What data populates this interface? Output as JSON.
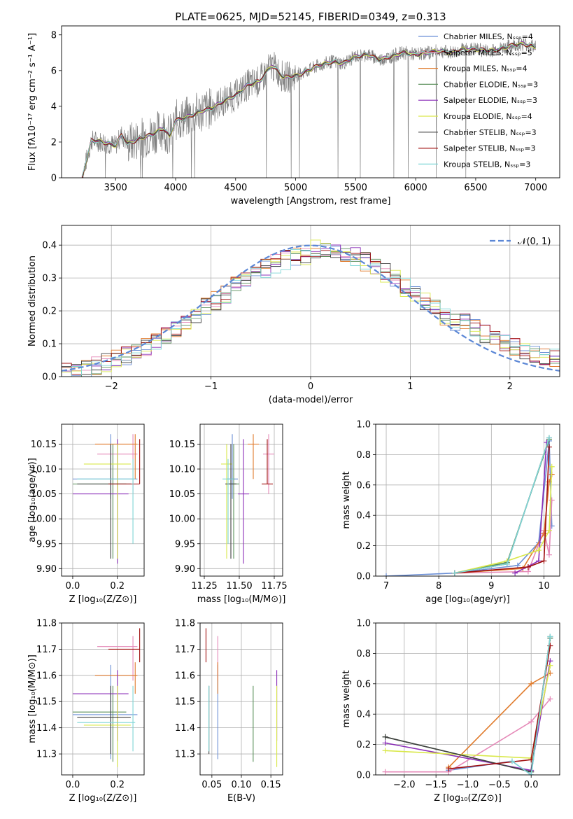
{
  "figure": {
    "title": "PLATE=0625, MJD=52145, FIBERID=0349, z=0.313"
  },
  "colors": {
    "Chabrier MILES": "#6b8fd6",
    "Salpeter MILES": "#e589b8",
    "Kroupa MILES": "#e07b2c",
    "Chabrier ELODIE": "#5a8f5a",
    "Salpeter ELODIE": "#8b2fb8",
    "Kroupa ELODIE": "#d9e84a",
    "Chabrier STELIB": "#404040",
    "Salpeter STELIB": "#a01010",
    "Kroupa STELIB": "#7fd6d6"
  },
  "chart_data": [
    {
      "id": "spectrum",
      "type": "line",
      "title": "PLATE=0625, MJD=52145, FIBERID=0349, z=0.313",
      "xlabel": "wavelength [Angstrom, rest frame]",
      "ylabel": "Flux [fλ10⁻¹⁷ erg cm⁻² s⁻¹ A⁻¹]",
      "xlim": [
        3050,
        7200
      ],
      "ylim": [
        0,
        8.5
      ],
      "xticks": [
        3500,
        4000,
        4500,
        5000,
        5500,
        6000,
        6500,
        7000
      ],
      "yticks": [
        0,
        2,
        4,
        6,
        8
      ],
      "grid": false,
      "legend_position": "top-right",
      "legend": [
        "Chabrier MILES, N_SSP=4",
        "Salpeter MILES, N_SSP=5",
        "Kroupa MILES, N_SSP=4",
        "Chabrier ELODIE, N_SSP=3",
        "Salpeter ELODIE, N_SSP=3",
        "Kroupa ELODIE, N_SSP=4",
        "Chabrier STELIB, N_SSP=3",
        "Salpeter STELIB, N_SSP=3",
        "Kroupa STELIB, N_SSP=3"
      ],
      "data_x": [
        3220,
        3300,
        3400,
        3500,
        3550,
        3600,
        3700,
        3800,
        3900,
        3950,
        4000,
        4100,
        4200,
        4300,
        4400,
        4500,
        4600,
        4700,
        4800,
        4850,
        4900,
        5000,
        5100,
        5200,
        5300,
        5400,
        5500,
        5600,
        5700,
        5800,
        5900,
        6000,
        6100,
        6200,
        6300,
        6400,
        6500,
        6600,
        6700,
        6800,
        6900,
        7000
      ],
      "data_y": [
        0,
        2.1,
        2.0,
        1.8,
        2.4,
        1.9,
        2.2,
        2.4,
        2.8,
        2.3,
        3.2,
        3.4,
        3.7,
        3.9,
        4.3,
        4.6,
        5.2,
        5.4,
        6.3,
        6.0,
        5.6,
        5.7,
        6.0,
        6.3,
        6.5,
        6.4,
        6.8,
        6.9,
        6.6,
        6.8,
        7.0,
        6.9,
        7.0,
        7.1,
        7.0,
        7.2,
        7.2,
        7.1,
        7.2,
        7.4,
        7.5,
        7.3
      ]
    },
    {
      "id": "residuals",
      "type": "line",
      "xlabel": "(data-model)/error",
      "ylabel": "Normed distribution",
      "xlim": [
        -2.5,
        2.5
      ],
      "ylim": [
        0,
        0.46
      ],
      "xticks": [
        -2,
        -1,
        0,
        1,
        2
      ],
      "yticks": [
        0.0,
        0.1,
        0.2,
        0.3,
        0.4
      ],
      "grid": true,
      "legend_position": "top-right",
      "legend": [
        "𝒩(0, 1)"
      ],
      "gaussian": {
        "mean": 0,
        "sigma": 1
      }
    },
    {
      "id": "age_vs_Z",
      "type": "scatter",
      "xlabel": "Z [log₁₀(Z/Z⊙)]",
      "ylabel": "age  [log₁₀(age/yr)]",
      "xlim": [
        -0.05,
        0.32
      ],
      "ylim": [
        9.885,
        10.19
      ],
      "xticks": [
        0.0,
        0.2
      ],
      "yticks": [
        9.9,
        9.95,
        10.0,
        10.05,
        10.1,
        10.15
      ],
      "grid": true
    },
    {
      "id": "age_vs_mass",
      "type": "scatter",
      "xlabel": "mass [log₁₀(M/M⊙)]",
      "ylabel": "",
      "xlim": [
        11.22,
        11.81
      ],
      "ylim": [
        9.885,
        10.19
      ],
      "xticks": [
        11.25,
        11.5,
        11.75
      ],
      "yticks": [
        9.9,
        9.95,
        10.0,
        10.05,
        10.1,
        10.15
      ],
      "grid": true
    },
    {
      "id": "weight_vs_age",
      "type": "line",
      "xlabel": "age  [log₁₀(age/yr)]",
      "ylabel": "mass weight",
      "xlim": [
        6.8,
        10.3
      ],
      "ylim": [
        0,
        1.0
      ],
      "xticks": [
        7,
        8,
        9,
        10
      ],
      "yticks": [
        0.0,
        0.2,
        0.4,
        0.6,
        0.8,
        1.0
      ],
      "grid": true
    },
    {
      "id": "mass_vs_Z",
      "type": "scatter",
      "xlabel": "Z [log₁₀(Z/Z⊙)]",
      "ylabel": "mass [log₁₀(M/M⊙)]",
      "xlim": [
        -0.05,
        0.32
      ],
      "ylim": [
        11.22,
        11.8
      ],
      "xticks": [
        0.0,
        0.2
      ],
      "yticks": [
        11.3,
        11.4,
        11.5,
        11.6,
        11.7,
        11.8
      ],
      "grid": true
    },
    {
      "id": "mass_vs_EBV",
      "type": "scatter",
      "xlabel": "E(B-V)",
      "ylabel": "",
      "xlim": [
        0.03,
        0.17
      ],
      "ylim": [
        11.22,
        11.8
      ],
      "xticks": [
        0.05,
        0.1,
        0.15
      ],
      "yticks": [
        11.3,
        11.4,
        11.5,
        11.6,
        11.7,
        11.8
      ],
      "grid": true
    },
    {
      "id": "weight_vs_Z",
      "type": "line",
      "xlabel": "Z [log₁₀(Z/Z⊙)]",
      "ylabel": "mass weight",
      "xlim": [
        -2.45,
        0.45
      ],
      "ylim": [
        0,
        1.0
      ],
      "xticks": [
        -2.0,
        -1.5,
        -1.0,
        -0.5,
        0.0
      ],
      "yticks": [
        0.0,
        0.2,
        0.4,
        0.6,
        0.8,
        1.0
      ],
      "grid": true
    }
  ],
  "models": [
    {
      "name": "Chabrier MILES",
      "age": 10.08,
      "age_err": [
        10.04,
        10.17
      ],
      "Z": 0.17,
      "Z_err": [
        0.0,
        0.29
      ],
      "mass": 11.45,
      "mass_err": [
        11.28,
        11.64
      ],
      "ebv": 0.06
    },
    {
      "name": "Salpeter MILES",
      "age": 10.13,
      "age_err": [
        10.05,
        10.17
      ],
      "Z": 0.27,
      "Z_err": [
        0.11,
        0.29
      ],
      "mass": 11.71,
      "mass_err": [
        11.58,
        11.75
      ],
      "ebv": 0.06
    },
    {
      "name": "Kroupa MILES",
      "age": 10.15,
      "age_err": [
        10.08,
        10.17
      ],
      "Z": 0.28,
      "Z_err": [
        0.1,
        0.29
      ],
      "mass": 11.6,
      "mass_err": [
        11.53,
        11.65
      ],
      "ebv": 0.06
    },
    {
      "name": "Chabrier ELODIE",
      "age": 10.07,
      "age_err": [
        9.92,
        10.15
      ],
      "Z": 0.18,
      "Z_err": [
        0.0,
        0.24
      ],
      "mass": 11.46,
      "mass_err": [
        11.27,
        11.56
      ],
      "ebv": 0.12
    },
    {
      "name": "Salpeter ELODIE",
      "age": 10.05,
      "age_err": [
        9.91,
        10.16
      ],
      "Z": 0.2,
      "Z_err": [
        0.0,
        0.25
      ],
      "mass": 11.53,
      "mass_err": [
        11.35,
        11.62
      ],
      "ebv": 0.16
    },
    {
      "name": "Kroupa ELODIE",
      "age": 10.11,
      "age_err": [
        9.92,
        10.15
      ],
      "Z": 0.2,
      "Z_err": [
        0.05,
        0.26
      ],
      "mass": 11.41,
      "mass_err": [
        11.25,
        11.56
      ],
      "ebv": 0.16
    },
    {
      "name": "Chabrier STELIB",
      "age": 10.07,
      "age_err": [
        9.92,
        10.15
      ],
      "Z": 0.17,
      "Z_err": [
        0.02,
        0.26
      ],
      "mass": 11.44,
      "mass_err": [
        11.3,
        11.56
      ],
      "ebv": 0.045
    },
    {
      "name": "Salpeter STELIB",
      "age": 10.07,
      "age_err": [
        10.07,
        10.16
      ],
      "Z": 0.3,
      "Z_err": [
        0.16,
        0.3
      ],
      "mass": 11.7,
      "mass_err": [
        11.65,
        11.78
      ],
      "ebv": 0.04
    },
    {
      "name": "Kroupa STELIB",
      "age": 10.08,
      "age_err": [
        9.95,
        10.12
      ],
      "Z": 0.27,
      "Z_err": [
        0.02,
        0.28
      ],
      "mass": 11.42,
      "mass_err": [
        11.31,
        11.56
      ],
      "ebv": 0.045
    }
  ],
  "weights_age": [
    {
      "name": "Chabrier MILES",
      "age": [
        7.0,
        8.3,
        9.5,
        9.9,
        10.1,
        10.15
      ],
      "w": [
        0.0,
        0.02,
        0.07,
        0.22,
        0.89,
        0.33
      ]
    },
    {
      "name": "Salpeter MILES",
      "age": [
        8.3,
        9.7,
        10.0,
        10.1,
        10.15
      ],
      "w": [
        0.02,
        0.03,
        0.3,
        0.14,
        0.5
      ]
    },
    {
      "name": "Kroupa MILES",
      "age": [
        8.3,
        9.6,
        10.0,
        10.1,
        10.15
      ],
      "w": [
        0.02,
        0.05,
        0.28,
        0.62,
        0.67
      ]
    },
    {
      "name": "Chabrier ELODIE",
      "age": [
        8.3,
        9.3,
        10.1
      ],
      "w": [
        0.02,
        0.09,
        0.9
      ]
    },
    {
      "name": "Salpeter ELODIE",
      "age": [
        9.45,
        9.9,
        10.05
      ],
      "w": [
        0.02,
        0.1,
        0.88
      ]
    },
    {
      "name": "Kroupa ELODIE",
      "age": [
        8.3,
        9.3,
        9.9,
        10.1,
        10.15
      ],
      "w": [
        0.02,
        0.1,
        0.17,
        0.3,
        0.72
      ]
    },
    {
      "name": "Chabrier STELIB",
      "age": [
        8.3,
        9.3,
        10.1
      ],
      "w": [
        0.02,
        0.08,
        0.91
      ]
    },
    {
      "name": "Salpeter STELIB",
      "age": [
        8.3,
        9.7,
        10.0,
        10.1
      ],
      "w": [
        0.02,
        0.06,
        0.1,
        0.85
      ]
    },
    {
      "name": "Kroupa STELIB",
      "age": [
        8.3,
        9.3,
        10.1
      ],
      "w": [
        0.02,
        0.08,
        0.91
      ]
    }
  ],
  "weights_Z": [
    {
      "name": "Chabrier MILES",
      "Z": [
        -1.3,
        -0.3,
        0.0,
        0.3
      ],
      "w": [
        0.03,
        0.09,
        0.0,
        0.9
      ]
    },
    {
      "name": "Salpeter MILES",
      "Z": [
        -2.3,
        -1.3,
        0.0,
        0.3
      ],
      "w": [
        0.02,
        0.02,
        0.35,
        0.5
      ]
    },
    {
      "name": "Kroupa MILES",
      "Z": [
        -1.3,
        0.0,
        0.3
      ],
      "w": [
        0.05,
        0.6,
        0.67
      ]
    },
    {
      "name": "Chabrier ELODIE",
      "Z": [
        -2.3,
        0.0,
        0.3
      ],
      "w": [
        0.25,
        0.02,
        0.9
      ]
    },
    {
      "name": "Salpeter ELODIE",
      "Z": [
        -2.3,
        0.0,
        0.3
      ],
      "w": [
        0.21,
        0.03,
        0.75
      ]
    },
    {
      "name": "Kroupa ELODIE",
      "Z": [
        -2.3,
        0.0,
        0.3
      ],
      "w": [
        0.16,
        0.11,
        0.72
      ]
    },
    {
      "name": "Chabrier STELIB",
      "Z": [
        -2.3,
        0.0,
        0.3
      ],
      "w": [
        0.25,
        0.02,
        0.91
      ]
    },
    {
      "name": "Salpeter STELIB",
      "Z": [
        -1.3,
        0.0,
        0.3
      ],
      "w": [
        0.04,
        0.1,
        0.85
      ]
    },
    {
      "name": "Kroupa STELIB",
      "Z": [
        -0.3,
        0.0,
        0.3
      ],
      "w": [
        0.09,
        0.0,
        0.91
      ]
    }
  ]
}
